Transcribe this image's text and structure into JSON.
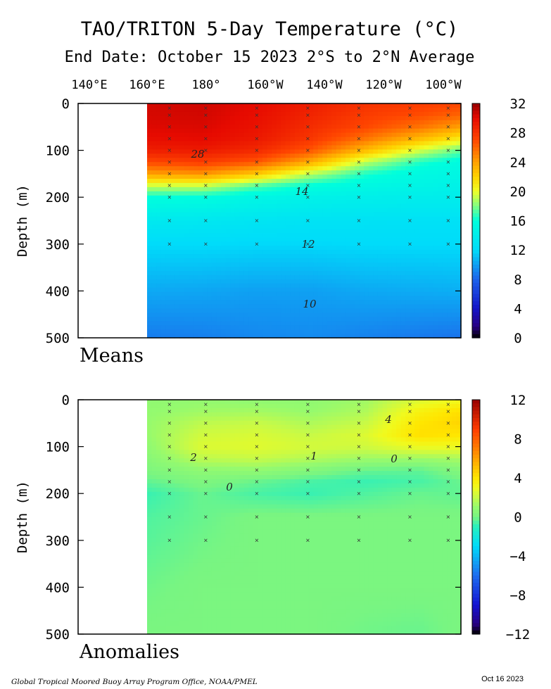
{
  "title": "TAO/TRITON 5-Day Temperature (°C)",
  "subtitle": "End Date: October 15 2023  2°S to 2°N Average",
  "footer_left": "Global Tropical Moored Buoy Array Program Office, NOAA/PMEL",
  "footer_right": "Oct 16 2023",
  "colors": {
    "plot_border": "#000000",
    "contour_line": "#333333"
  },
  "chart_data": [
    {
      "type": "heatmap",
      "panel_label": "Means",
      "ylabel": "Depth (m)",
      "x_tick_labels": [
        "140°E",
        "160°E",
        "180°",
        "160°W",
        "140°W",
        "120°W",
        "100°W"
      ],
      "y_tick_labels": [
        "0",
        "100",
        "200",
        "300",
        "400",
        "500"
      ],
      "ylim": [
        0,
        500
      ],
      "colorbar_ticks": [
        "32",
        "28",
        "24",
        "20",
        "16",
        "12",
        "8",
        "4",
        "0"
      ],
      "colorbar_range": [
        0,
        32
      ],
      "contour_labels": [
        "28",
        "14",
        "12",
        "10"
      ],
      "x_longitudes_east": [
        160,
        180,
        200,
        220,
        240,
        260,
        275
      ],
      "depths": [
        0,
        25,
        50,
        75,
        100,
        125,
        150,
        175,
        200,
        250,
        300,
        400,
        500
      ],
      "values": [
        [
          30.5,
          30.6,
          30.0,
          29.0,
          28.0,
          27.5,
          27.0
        ],
        [
          30.4,
          30.5,
          29.8,
          28.7,
          27.5,
          26.8,
          26.0
        ],
        [
          30.2,
          30.3,
          29.6,
          28.3,
          27.0,
          25.5,
          24.0
        ],
        [
          29.8,
          30.0,
          29.3,
          27.8,
          25.5,
          23.0,
          21.0
        ],
        [
          29.0,
          29.2,
          28.5,
          26.5,
          23.0,
          19.5,
          17.5
        ],
        [
          27.0,
          27.5,
          26.5,
          23.5,
          19.0,
          16.5,
          15.5
        ],
        [
          24.0,
          24.5,
          22.5,
          19.0,
          16.5,
          15.3,
          15.0
        ],
        [
          19.5,
          19.5,
          17.5,
          16.0,
          15.2,
          14.8,
          14.5
        ],
        [
          16.0,
          15.8,
          15.0,
          14.5,
          14.2,
          14.0,
          14.0
        ],
        [
          13.5,
          13.3,
          13.0,
          12.8,
          12.7,
          12.6,
          12.6
        ],
        [
          12.0,
          12.0,
          11.9,
          11.9,
          12.0,
          12.0,
          12.0
        ],
        [
          10.3,
          10.2,
          10.0,
          10.0,
          10.3,
          10.4,
          10.5
        ],
        [
          8.8,
          8.9,
          9.2,
          9.3,
          9.0,
          8.7,
          8.5
        ]
      ]
    },
    {
      "type": "heatmap",
      "panel_label": "Anomalies",
      "ylabel": "Depth (m)",
      "y_tick_labels": [
        "0",
        "100",
        "200",
        "300",
        "400",
        "500"
      ],
      "ylim": [
        0,
        500
      ],
      "colorbar_ticks": [
        "12",
        "8",
        "4",
        "0",
        "−4",
        "−8",
        "−12"
      ],
      "colorbar_range": [
        -12,
        12
      ],
      "contour_labels": [
        "4",
        "2",
        "1",
        "0",
        "0"
      ],
      "x_longitudes_east": [
        160,
        180,
        200,
        220,
        240,
        260,
        275
      ],
      "depths": [
        0,
        25,
        50,
        75,
        100,
        125,
        150,
        175,
        200,
        250,
        300,
        400,
        500
      ],
      "values": [
        [
          0.8,
          0.9,
          0.8,
          0.8,
          1.2,
          2.5,
          3.0
        ],
        [
          0.9,
          1.2,
          1.3,
          1.0,
          1.5,
          3.5,
          4.2
        ],
        [
          1.0,
          1.8,
          2.0,
          1.5,
          2.0,
          4.0,
          4.5
        ],
        [
          1.0,
          2.2,
          2.4,
          2.0,
          2.5,
          4.2,
          4.0
        ],
        [
          0.8,
          2.5,
          2.6,
          2.3,
          2.2,
          3.0,
          3.0
        ],
        [
          0.5,
          1.8,
          2.0,
          1.6,
          1.2,
          1.2,
          1.4
        ],
        [
          0.2,
          0.8,
          0.9,
          0.4,
          -0.2,
          -0.3,
          0.4
        ],
        [
          -0.3,
          0.2,
          -0.2,
          -0.6,
          -0.8,
          -0.6,
          -0.2
        ],
        [
          -0.8,
          -0.2,
          -0.6,
          -0.8,
          -0.5,
          -0.2,
          -0.3
        ],
        [
          -0.5,
          -0.2,
          0.1,
          0.1,
          0.1,
          0.1,
          0.1
        ],
        [
          -0.4,
          -0.1,
          0.1,
          0.1,
          0.1,
          0.1,
          0.1
        ],
        [
          -0.1,
          0.1,
          0.1,
          0.1,
          0.1,
          0.1,
          0.1
        ],
        [
          0.1,
          0.1,
          0.1,
          0.1,
          -0.1,
          -0.2,
          0.1
        ]
      ]
    }
  ]
}
